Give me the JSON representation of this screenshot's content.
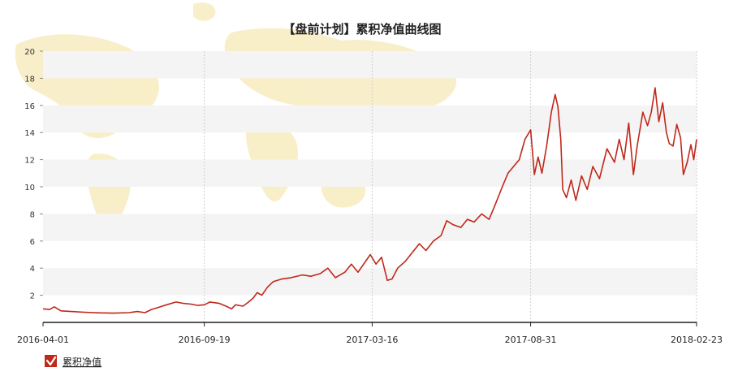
{
  "chart_data": {
    "type": "line",
    "title": "【盘前计划】累积净值曲线图",
    "xlabel": "",
    "ylabel": "",
    "ylim": [
      0,
      20
    ],
    "yticks": [
      2,
      4,
      6,
      8,
      10,
      12,
      14,
      16,
      18,
      20
    ],
    "xlim": [
      "2016-04-01",
      "2018-02-23"
    ],
    "xticks": [
      "2016-04-01",
      "2016-09-19",
      "2017-03-16",
      "2017-08-31",
      "2018-02-23"
    ],
    "grid": "alternating horizontal bands, dotted vertical lines at x ticks",
    "legend_position": "bottom-left",
    "series": [
      {
        "name": "累积净值",
        "color": "#c0281a",
        "points": [
          [
            "2016-04-01",
            1.0
          ],
          [
            "2016-04-08",
            0.95
          ],
          [
            "2016-04-13",
            1.15
          ],
          [
            "2016-04-20",
            0.85
          ],
          [
            "2016-05-01",
            0.8
          ],
          [
            "2016-05-15",
            0.75
          ],
          [
            "2016-06-01",
            0.7
          ],
          [
            "2016-06-15",
            0.68
          ],
          [
            "2016-07-01",
            0.72
          ],
          [
            "2016-07-10",
            0.8
          ],
          [
            "2016-07-18",
            0.72
          ],
          [
            "2016-07-25",
            0.95
          ],
          [
            "2016-08-01",
            1.1
          ],
          [
            "2016-08-10",
            1.3
          ],
          [
            "2016-08-20",
            1.5
          ],
          [
            "2016-08-28",
            1.4
          ],
          [
            "2016-09-05",
            1.35
          ],
          [
            "2016-09-12",
            1.25
          ],
          [
            "2016-09-19",
            1.3
          ],
          [
            "2016-09-25",
            1.5
          ],
          [
            "2016-10-05",
            1.4
          ],
          [
            "2016-10-12",
            1.2
          ],
          [
            "2016-10-18",
            1.0
          ],
          [
            "2016-10-22",
            1.3
          ],
          [
            "2016-10-30",
            1.2
          ],
          [
            "2016-11-05",
            1.5
          ],
          [
            "2016-11-10",
            1.8
          ],
          [
            "2016-11-14",
            2.2
          ],
          [
            "2016-11-19",
            2.0
          ],
          [
            "2016-11-25",
            2.6
          ],
          [
            "2016-12-01",
            3.0
          ],
          [
            "2016-12-10",
            3.2
          ],
          [
            "2016-12-20",
            3.3
          ],
          [
            "2017-01-01",
            3.5
          ],
          [
            "2017-01-10",
            3.4
          ],
          [
            "2017-01-20",
            3.6
          ],
          [
            "2017-01-28",
            4.0
          ],
          [
            "2017-02-05",
            3.3
          ],
          [
            "2017-02-15",
            3.7
          ],
          [
            "2017-02-22",
            4.3
          ],
          [
            "2017-03-01",
            3.7
          ],
          [
            "2017-03-08",
            4.4
          ],
          [
            "2017-03-14",
            5.0
          ],
          [
            "2017-03-20",
            4.3
          ],
          [
            "2017-03-26",
            4.8
          ],
          [
            "2017-04-01",
            3.1
          ],
          [
            "2017-04-06",
            3.2
          ],
          [
            "2017-04-12",
            4.0
          ],
          [
            "2017-04-20",
            4.5
          ],
          [
            "2017-04-28",
            5.2
          ],
          [
            "2017-05-05",
            5.8
          ],
          [
            "2017-05-12",
            5.3
          ],
          [
            "2017-05-20",
            6.0
          ],
          [
            "2017-05-28",
            6.4
          ],
          [
            "2017-06-03",
            7.5
          ],
          [
            "2017-06-10",
            7.2
          ],
          [
            "2017-06-18",
            7.0
          ],
          [
            "2017-06-25",
            7.6
          ],
          [
            "2017-07-02",
            7.4
          ],
          [
            "2017-07-10",
            8.0
          ],
          [
            "2017-07-18",
            7.6
          ],
          [
            "2017-07-24",
            8.6
          ],
          [
            "2017-08-01",
            10.0
          ],
          [
            "2017-08-07",
            11.0
          ],
          [
            "2017-08-13",
            11.5
          ],
          [
            "2017-08-19",
            12.0
          ],
          [
            "2017-08-25",
            13.5
          ],
          [
            "2017-08-31",
            14.2
          ],
          [
            "2017-09-04",
            10.9
          ],
          [
            "2017-09-08",
            12.2
          ],
          [
            "2017-09-12",
            11.0
          ],
          [
            "2017-09-17",
            13.0
          ],
          [
            "2017-09-22",
            15.5
          ],
          [
            "2017-09-26",
            16.8
          ],
          [
            "2017-09-29",
            15.9
          ],
          [
            "2017-10-02",
            13.5
          ],
          [
            "2017-10-04",
            9.8
          ],
          [
            "2017-10-08",
            9.2
          ],
          [
            "2017-10-13",
            10.5
          ],
          [
            "2017-10-18",
            9.0
          ],
          [
            "2017-10-24",
            10.8
          ],
          [
            "2017-10-30",
            9.8
          ],
          [
            "2017-11-05",
            11.5
          ],
          [
            "2017-11-12",
            10.6
          ],
          [
            "2017-11-20",
            12.8
          ],
          [
            "2017-11-28",
            11.8
          ],
          [
            "2017-12-03",
            13.5
          ],
          [
            "2017-12-08",
            12.0
          ],
          [
            "2017-12-13",
            14.7
          ],
          [
            "2017-12-18",
            10.9
          ],
          [
            "2017-12-22",
            13.0
          ],
          [
            "2017-12-28",
            15.5
          ],
          [
            "2018-01-02",
            14.5
          ],
          [
            "2018-01-06",
            15.5
          ],
          [
            "2018-01-10",
            17.3
          ],
          [
            "2018-01-14",
            14.8
          ],
          [
            "2018-01-18",
            16.2
          ],
          [
            "2018-01-22",
            14.0
          ],
          [
            "2018-01-25",
            13.2
          ],
          [
            "2018-01-29",
            13.0
          ],
          [
            "2018-02-02",
            14.6
          ],
          [
            "2018-02-06",
            13.6
          ],
          [
            "2018-02-09",
            10.9
          ],
          [
            "2018-02-13",
            11.8
          ],
          [
            "2018-02-17",
            13.1
          ],
          [
            "2018-02-20",
            12.0
          ],
          [
            "2018-02-23",
            13.5
          ]
        ]
      }
    ]
  },
  "legend": {
    "checkbox_checked": true,
    "label": "累积净值",
    "check_color": "#c0281a"
  }
}
